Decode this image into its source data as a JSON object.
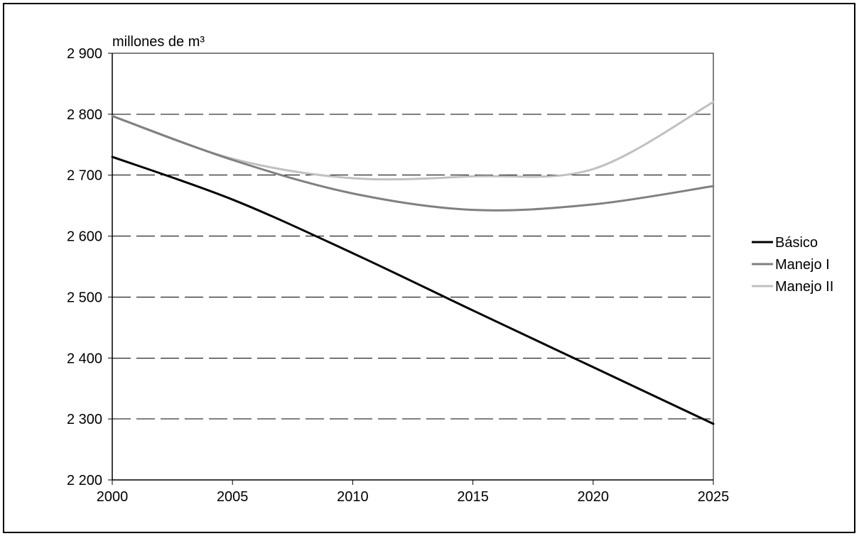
{
  "chart_data": {
    "type": "line",
    "unit_label": "millones de m³",
    "x": [
      2000,
      2005,
      2010,
      2015,
      2020,
      2025
    ],
    "xlim": [
      2000,
      2025
    ],
    "ylim": [
      2200,
      2900
    ],
    "x_ticks": [
      "2000",
      "2005",
      "2010",
      "2015",
      "2020",
      "2025"
    ],
    "y_ticks": [
      {
        "value": 2200,
        "label": "2 200"
      },
      {
        "value": 2300,
        "label": "2 300"
      },
      {
        "value": 2400,
        "label": "2 400"
      },
      {
        "value": 2500,
        "label": "2 500"
      },
      {
        "value": 2600,
        "label": "2 600"
      },
      {
        "value": 2700,
        "label": "2 700"
      },
      {
        "value": 2800,
        "label": "2 800"
      },
      {
        "value": 2900,
        "label": "2 900"
      }
    ],
    "grid": "horizontal dashed",
    "legend_position": "right",
    "series": [
      {
        "name": "Básico",
        "color": "#000000",
        "values": [
          2730,
          2660,
          2572,
          2478,
          2385,
          2292
        ]
      },
      {
        "name": "Manejo I",
        "color": "#808080",
        "values": [
          2797,
          2725,
          2670,
          2643,
          2652,
          2682
        ]
      },
      {
        "name": "Manejo II",
        "color": "#c0c0c0",
        "values": [
          2797,
          2727,
          2695,
          2698,
          2710,
          2820
        ]
      }
    ]
  }
}
